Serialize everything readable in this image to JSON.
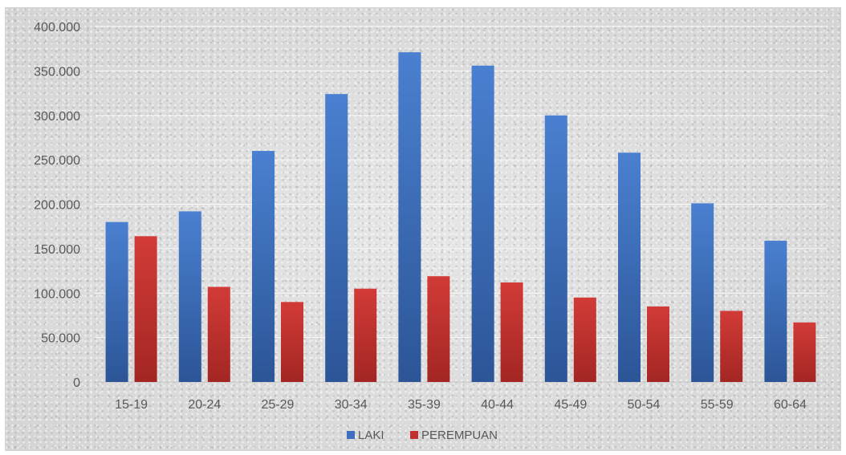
{
  "chart_data": {
    "type": "bar",
    "title": "",
    "xlabel": "",
    "ylabel": "",
    "categories": [
      "15-19",
      "20-24",
      "25-29",
      "30-34",
      "35-39",
      "40-44",
      "45-49",
      "50-54",
      "55-59",
      "60-64"
    ],
    "series": [
      {
        "name": "LAKI",
        "color": "#3f6fc0",
        "values": [
          180000,
          192000,
          260000,
          324000,
          371000,
          356000,
          300000,
          258000,
          201000,
          159000
        ]
      },
      {
        "name": "PEREMPUAN",
        "color": "#c0312f",
        "values": [
          164000,
          107000,
          90000,
          105000,
          119000,
          112000,
          95000,
          85000,
          80000,
          67000
        ]
      }
    ],
    "ylim": [
      0,
      400000
    ],
    "yticks": [
      0,
      50000,
      100000,
      150000,
      200000,
      250000,
      300000,
      350000,
      400000
    ],
    "ytick_labels": [
      "0",
      "50.000",
      "100.000",
      "150.000",
      "200.000",
      "250.000",
      "300.000",
      "350.000",
      "400.000"
    ],
    "grid": true,
    "legend_position": "bottom"
  }
}
